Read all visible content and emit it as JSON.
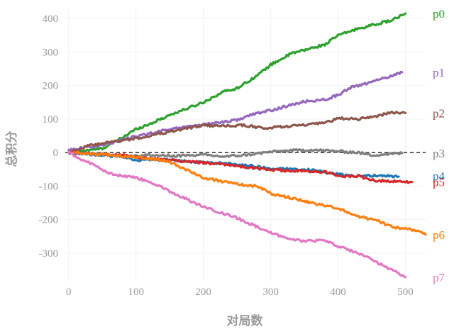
{
  "chart_data": {
    "type": "line",
    "xlabel": "对局数",
    "ylabel": "总积分",
    "xlim": [
      -5,
      530
    ],
    "ylim": [
      -385,
      430
    ],
    "x_ticks": [
      0,
      100,
      200,
      300,
      400,
      500
    ],
    "y_ticks": [
      400,
      300,
      200,
      100,
      0,
      -100,
      -200,
      -300
    ],
    "reference_line": {
      "y": 0,
      "style": "dashed",
      "color": "#000000"
    },
    "legend": "series labels at right end of lines",
    "grid": true,
    "series": [
      {
        "name": "p0",
        "color": "#2ca02c",
        "end_x": 500,
        "label_y": 415,
        "points": [
          [
            0,
            0
          ],
          [
            50,
            12
          ],
          [
            80,
            45
          ],
          [
            100,
            70
          ],
          [
            120,
            85
          ],
          [
            150,
            112
          ],
          [
            200,
            150
          ],
          [
            230,
            182
          ],
          [
            250,
            192
          ],
          [
            280,
            230
          ],
          [
            300,
            262
          ],
          [
            330,
            295
          ],
          [
            350,
            306
          ],
          [
            380,
            322
          ],
          [
            400,
            350
          ],
          [
            430,
            370
          ],
          [
            460,
            385
          ],
          [
            480,
            395
          ],
          [
            500,
            415
          ]
        ]
      },
      {
        "name": "p1",
        "color": "#9467bd",
        "end_x": 495,
        "label_y": 240,
        "points": [
          [
            0,
            8
          ],
          [
            50,
            22
          ],
          [
            100,
            48
          ],
          [
            150,
            70
          ],
          [
            200,
            84
          ],
          [
            250,
            97
          ],
          [
            270,
            112
          ],
          [
            300,
            126
          ],
          [
            350,
            152
          ],
          [
            380,
            158
          ],
          [
            400,
            172
          ],
          [
            420,
            195
          ],
          [
            450,
            210
          ],
          [
            480,
            230
          ],
          [
            495,
            240
          ]
        ]
      },
      {
        "name": "p2",
        "color": "#8c564b",
        "end_x": 500,
        "label_y": 118,
        "points": [
          [
            0,
            0
          ],
          [
            30,
            20
          ],
          [
            60,
            30
          ],
          [
            100,
            42
          ],
          [
            150,
            62
          ],
          [
            200,
            82
          ],
          [
            230,
            78
          ],
          [
            260,
            82
          ],
          [
            290,
            72
          ],
          [
            320,
            78
          ],
          [
            350,
            82
          ],
          [
            380,
            88
          ],
          [
            400,
            102
          ],
          [
            430,
            100
          ],
          [
            460,
            110
          ],
          [
            480,
            120
          ],
          [
            500,
            118
          ]
        ]
      },
      {
        "name": "p3",
        "color": "#7f7f7f",
        "end_x": 495,
        "label_y": -2,
        "points": [
          [
            0,
            0
          ],
          [
            40,
            -5
          ],
          [
            80,
            -10
          ],
          [
            120,
            -8
          ],
          [
            160,
            -10
          ],
          [
            200,
            -7
          ],
          [
            230,
            -12
          ],
          [
            260,
            -8
          ],
          [
            300,
            2
          ],
          [
            330,
            6
          ],
          [
            360,
            8
          ],
          [
            400,
            4
          ],
          [
            430,
            0
          ],
          [
            450,
            -8
          ],
          [
            470,
            -5
          ],
          [
            495,
            -2
          ]
        ]
      },
      {
        "name": "p4",
        "color": "#1f77b4",
        "end_x": 490,
        "label_y": -70,
        "points": [
          [
            0,
            0
          ],
          [
            50,
            -8
          ],
          [
            80,
            -12
          ],
          [
            100,
            -22
          ],
          [
            150,
            -22
          ],
          [
            200,
            -30
          ],
          [
            250,
            -35
          ],
          [
            280,
            -42
          ],
          [
            300,
            -48
          ],
          [
            350,
            -50
          ],
          [
            380,
            -58
          ],
          [
            400,
            -65
          ],
          [
            430,
            -70
          ],
          [
            460,
            -68
          ],
          [
            490,
            -72
          ]
        ]
      },
      {
        "name": "p5",
        "color": "#d62728",
        "end_x": 510,
        "label_y": -88,
        "points": [
          [
            0,
            0
          ],
          [
            50,
            -5
          ],
          [
            80,
            -8
          ],
          [
            100,
            -15
          ],
          [
            150,
            -22
          ],
          [
            200,
            -30
          ],
          [
            250,
            -40
          ],
          [
            300,
            -52
          ],
          [
            350,
            -55
          ],
          [
            380,
            -58
          ],
          [
            400,
            -70
          ],
          [
            430,
            -70
          ],
          [
            450,
            -82
          ],
          [
            480,
            -86
          ],
          [
            510,
            -88
          ]
        ]
      },
      {
        "name": "p6",
        "color": "#ff7f0e",
        "end_x": 530,
        "label_y": -245,
        "points": [
          [
            0,
            0
          ],
          [
            50,
            -5
          ],
          [
            100,
            -15
          ],
          [
            130,
            -20
          ],
          [
            150,
            -28
          ],
          [
            180,
            -55
          ],
          [
            200,
            -75
          ],
          [
            250,
            -95
          ],
          [
            280,
            -100
          ],
          [
            300,
            -122
          ],
          [
            350,
            -145
          ],
          [
            400,
            -168
          ],
          [
            430,
            -190
          ],
          [
            460,
            -205
          ],
          [
            480,
            -222
          ],
          [
            510,
            -230
          ],
          [
            530,
            -245
          ]
        ]
      },
      {
        "name": "p7",
        "color": "#e377c2",
        "end_x": 500,
        "label_y": -372,
        "points": [
          [
            0,
            0
          ],
          [
            30,
            -30
          ],
          [
            60,
            -62
          ],
          [
            80,
            -70
          ],
          [
            100,
            -75
          ],
          [
            130,
            -95
          ],
          [
            160,
            -125
          ],
          [
            200,
            -162
          ],
          [
            250,
            -195
          ],
          [
            300,
            -240
          ],
          [
            330,
            -258
          ],
          [
            350,
            -265
          ],
          [
            380,
            -262
          ],
          [
            400,
            -280
          ],
          [
            430,
            -300
          ],
          [
            460,
            -330
          ],
          [
            480,
            -350
          ],
          [
            500,
            -372
          ]
        ]
      }
    ]
  }
}
